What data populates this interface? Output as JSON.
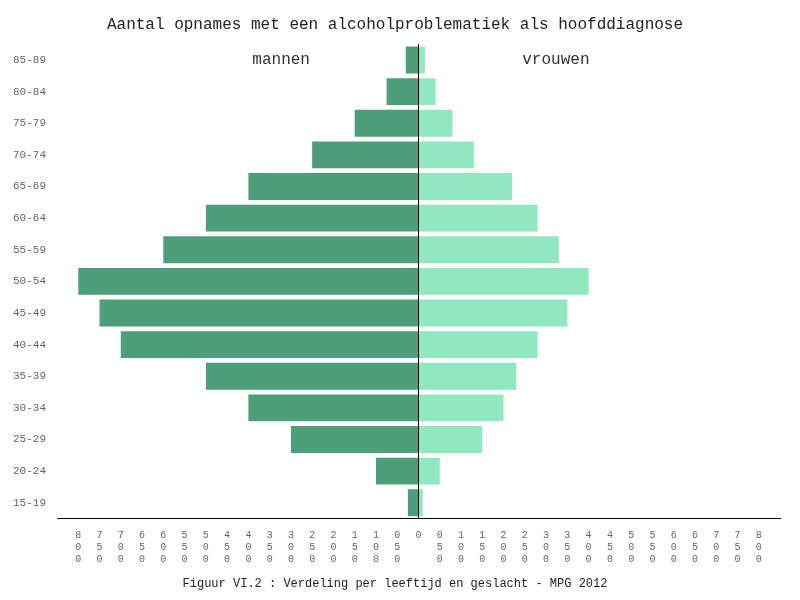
{
  "chart_data": {
    "type": "bar",
    "orientation": "horizontal",
    "title": "Aantal opnames met een alcoholproblematiek als hoofddiagnose",
    "subtitle": "Figuur VI.2 : Verdeling per leeftijd en geslacht - MPG 2012",
    "categories": [
      "15-19",
      "20-24",
      "25-29",
      "30-34",
      "35-39",
      "40-44",
      "45-49",
      "50-54",
      "55-59",
      "60-64",
      "65-69",
      "70-74",
      "75-79",
      "80-84",
      "85-89"
    ],
    "series": [
      {
        "name": "mannen",
        "color": "#4d9e7a",
        "values": [
          -25,
          -100,
          -300,
          -400,
          -500,
          -700,
          -750,
          -800,
          -600,
          -500,
          -400,
          -250,
          -150,
          -75,
          -30
        ]
      },
      {
        "name": "vrouwen",
        "color": "#90e8c0",
        "values": [
          10,
          50,
          150,
          200,
          230,
          280,
          350,
          400,
          330,
          280,
          220,
          130,
          80,
          40,
          15
        ]
      }
    ],
    "annotations": [
      {
        "text": "mannen",
        "x": -323,
        "y": "85-89"
      },
      {
        "text": "vrouwen",
        "x": 323,
        "y": "85-89"
      }
    ],
    "xlim": [
      -850,
      850
    ],
    "xticks": [
      {
        "value": -800,
        "label": "8\n0\n0"
      },
      {
        "value": -750,
        "label": "7\n5\n0"
      },
      {
        "value": -700,
        "label": "7\n0\n0"
      },
      {
        "value": -650,
        "label": "6\n5\n0"
      },
      {
        "value": -600,
        "label": "6\n0\n0"
      },
      {
        "value": -550,
        "label": "5\n5\n0"
      },
      {
        "value": -500,
        "label": "5\n0\n0"
      },
      {
        "value": -450,
        "label": "4\n5\n0"
      },
      {
        "value": -400,
        "label": "4\n0\n0"
      },
      {
        "value": -350,
        "label": "3\n5\n0"
      },
      {
        "value": -300,
        "label": "3\n0\n0"
      },
      {
        "value": -250,
        "label": "2\n5\n0"
      },
      {
        "value": -200,
        "label": "2\n0\n0"
      },
      {
        "value": -150,
        "label": "1\n5\n0"
      },
      {
        "value": -100,
        "label": "1\n0\n0"
      },
      {
        "value": -50,
        "label": "0\n5\n0"
      },
      0,
      {
        "value": 50,
        "label": "0\n5\n0"
      },
      {
        "value": 100,
        "label": "1\n0\n0"
      },
      {
        "value": 150,
        "label": "1\n5\n0"
      },
      {
        "value": 200,
        "label": "2\n0\n0"
      },
      {
        "value": 250,
        "label": "2\n5\n0"
      },
      {
        "value": 300,
        "label": "3\n0\n0"
      },
      {
        "value": 350,
        "label": "3\n5\n0"
      },
      {
        "value": 400,
        "label": "4\n0\n0"
      },
      {
        "value": 450,
        "label": "4\n5\n0"
      },
      {
        "value": 500,
        "label": "5\n0\n0"
      },
      {
        "value": 550,
        "label": "5\n5\n0"
      },
      {
        "value": 600,
        "label": "6\n0\n0"
      },
      {
        "value": 650,
        "label": "6\n5\n0"
      },
      {
        "value": 700,
        "label": "7\n0\n0"
      },
      {
        "value": 750,
        "label": "7\n5\n0"
      },
      {
        "value": 800,
        "label": "8\n0\n0"
      }
    ],
    "grid": false
  }
}
